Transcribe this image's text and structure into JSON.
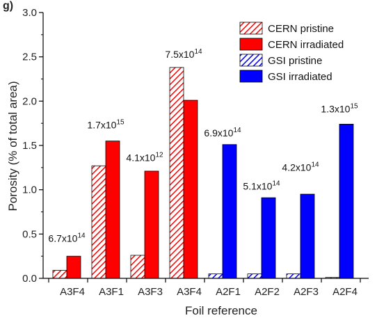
{
  "chart_data": {
    "type": "bar",
    "page_title": "g)",
    "xlabel": "Foil reference",
    "ylabel": "Porosity (% of total area)",
    "ylim": [
      0,
      3.0
    ],
    "yticks": [
      "0.0",
      "0.5",
      "1.0",
      "1.5",
      "2.0",
      "2.5",
      "3.0"
    ],
    "ytick_values": [
      0,
      0.5,
      1.0,
      1.5,
      2.0,
      2.5,
      3.0
    ],
    "categories": [
      "A3F4",
      "A3F1",
      "A3F3",
      "A3F4",
      "A2F1",
      "A2F2",
      "A2F3",
      "A2F4"
    ],
    "series": [
      {
        "name": "CERN pristine",
        "color": "#ff0000",
        "pattern": "hatch",
        "values": [
          0.09,
          1.27,
          0.26,
          2.38,
          null,
          null,
          null,
          null
        ]
      },
      {
        "name": "CERN irradiated",
        "color": "#ff0000",
        "pattern": "solid",
        "values": [
          0.25,
          1.55,
          1.21,
          2.01,
          null,
          null,
          null,
          null
        ]
      },
      {
        "name": "GSI pristine",
        "color": "#0000ff",
        "pattern": "hatch",
        "values": [
          null,
          null,
          null,
          null,
          0.05,
          0.05,
          0.05,
          0.01
        ]
      },
      {
        "name": "GSI irradiated",
        "color": "#0000ff",
        "pattern": "solid",
        "values": [
          null,
          null,
          null,
          null,
          1.51,
          0.91,
          0.95,
          1.74
        ]
      }
    ],
    "annotations": [
      {
        "base": "6.7x10",
        "exp": "14",
        "group": 0,
        "value": 0.38
      },
      {
        "base": "1.7x10",
        "exp": "15",
        "group": 1,
        "value": 1.66
      },
      {
        "base": "4.1x10",
        "exp": "12",
        "group": 2,
        "value": 1.29
      },
      {
        "base": "7.5x10",
        "exp": "14",
        "group": 3,
        "value": 2.46
      },
      {
        "base": "6.9x10",
        "exp": "14",
        "group": 4,
        "value": 1.57
      },
      {
        "base": "5.1x10",
        "exp": "14",
        "group": 5,
        "value": 0.97
      },
      {
        "base": "4.2x10",
        "exp": "14",
        "group": 6,
        "value": 1.18
      },
      {
        "base": "1.3x10",
        "exp": "15",
        "group": 7,
        "value": 1.84
      }
    ],
    "legend_position": "top-right"
  }
}
